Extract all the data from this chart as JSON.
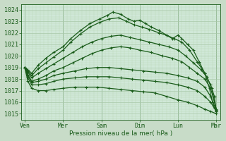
{
  "background_color": "#c8dcc8",
  "plot_bg_color": "#d0e8d8",
  "grid_major_color": "#a8c8a8",
  "grid_minor_color": "#b8d8b8",
  "line_color": "#1a5c1a",
  "marker": "+",
  "title": "Pression niveau de la mer( hPa )",
  "ylim": [
    1014.5,
    1024.5
  ],
  "yticks": [
    1015,
    1016,
    1017,
    1018,
    1019,
    1020,
    1021,
    1022,
    1023,
    1024
  ],
  "xtick_labels": [
    "Ven",
    "Mer",
    "Sam",
    "Dim",
    "Lun",
    "Mar"
  ],
  "xtick_positions": [
    0,
    1,
    2,
    3,
    4,
    5
  ],
  "series": [
    {
      "x": [
        0,
        0.08,
        0.18,
        0.35,
        0.55,
        0.75,
        1.0,
        1.2,
        1.45,
        1.7,
        1.95,
        2.15,
        2.3,
        2.5,
        2.7,
        2.85,
        3.0,
        3.15,
        3.3,
        3.5,
        3.7,
        3.85,
        4.0,
        4.1,
        4.25,
        4.4,
        4.55,
        4.7,
        4.82,
        4.9,
        4.95,
        5.0
      ],
      "y": [
        1019.0,
        1018.8,
        1018.5,
        1019.2,
        1019.8,
        1020.3,
        1020.8,
        1021.5,
        1022.2,
        1022.8,
        1023.2,
        1023.5,
        1023.8,
        1023.6,
        1023.2,
        1023.0,
        1023.1,
        1022.8,
        1022.5,
        1022.2,
        1021.8,
        1021.5,
        1021.8,
        1021.5,
        1021.0,
        1020.5,
        1019.5,
        1018.5,
        1017.2,
        1016.0,
        1015.5,
        1015.2
      ]
    },
    {
      "x": [
        0,
        0.08,
        0.18,
        0.35,
        0.55,
        0.75,
        1.0,
        1.2,
        1.45,
        1.7,
        1.95,
        2.2,
        2.45,
        2.65,
        2.85,
        3.05,
        3.25,
        3.5,
        3.7,
        3.9,
        4.1,
        4.3,
        4.5,
        4.7,
        4.85,
        4.95,
        5.0
      ],
      "y": [
        1019.0,
        1018.7,
        1018.3,
        1018.9,
        1019.4,
        1019.9,
        1020.5,
        1021.2,
        1021.9,
        1022.5,
        1022.9,
        1023.2,
        1023.3,
        1023.0,
        1022.7,
        1022.5,
        1022.3,
        1022.0,
        1021.8,
        1021.5,
        1021.2,
        1020.5,
        1019.5,
        1018.5,
        1017.5,
        1016.5,
        1015.2
      ]
    },
    {
      "x": [
        0,
        0.08,
        0.18,
        0.35,
        0.55,
        0.75,
        1.0,
        1.25,
        1.5,
        1.75,
        2.0,
        2.25,
        2.5,
        2.75,
        3.0,
        3.25,
        3.5,
        3.75,
        4.0,
        4.2,
        4.4,
        4.6,
        4.75,
        4.88,
        5.0
      ],
      "y": [
        1019.0,
        1018.6,
        1018.1,
        1018.5,
        1018.9,
        1019.3,
        1019.8,
        1020.3,
        1020.8,
        1021.2,
        1021.5,
        1021.7,
        1021.8,
        1021.6,
        1021.4,
        1021.2,
        1021.0,
        1020.8,
        1020.5,
        1020.0,
        1019.4,
        1018.8,
        1018.2,
        1017.2,
        1015.3
      ]
    },
    {
      "x": [
        0,
        0.08,
        0.18,
        0.35,
        0.55,
        0.75,
        1.0,
        1.25,
        1.5,
        1.75,
        2.0,
        2.25,
        2.5,
        2.75,
        3.0,
        3.3,
        3.6,
        3.85,
        4.1,
        4.3,
        4.5,
        4.7,
        4.85,
        5.0
      ],
      "y": [
        1019.0,
        1018.4,
        1017.8,
        1018.0,
        1018.3,
        1018.7,
        1019.0,
        1019.4,
        1019.8,
        1020.2,
        1020.5,
        1020.7,
        1020.8,
        1020.7,
        1020.5,
        1020.3,
        1020.0,
        1019.8,
        1019.5,
        1019.0,
        1018.5,
        1018.0,
        1017.2,
        1015.4
      ]
    },
    {
      "x": [
        0,
        0.08,
        0.18,
        0.35,
        0.55,
        0.75,
        1.0,
        1.3,
        1.6,
        1.9,
        2.2,
        2.5,
        2.8,
        3.1,
        3.4,
        3.7,
        4.0,
        4.25,
        4.5,
        4.7,
        4.85,
        5.0
      ],
      "y": [
        1019.0,
        1018.3,
        1017.7,
        1017.8,
        1018.0,
        1018.3,
        1018.5,
        1018.7,
        1018.9,
        1019.0,
        1019.0,
        1018.9,
        1018.8,
        1018.7,
        1018.6,
        1018.5,
        1018.3,
        1018.1,
        1017.8,
        1017.3,
        1016.5,
        1015.3
      ]
    },
    {
      "x": [
        0,
        0.08,
        0.18,
        0.35,
        0.55,
        0.75,
        1.0,
        1.3,
        1.6,
        1.9,
        2.2,
        2.5,
        2.8,
        3.1,
        3.4,
        3.7,
        4.0,
        4.25,
        4.5,
        4.7,
        4.85,
        5.0
      ],
      "y": [
        1019.0,
        1018.1,
        1017.5,
        1017.5,
        1017.6,
        1017.8,
        1018.0,
        1018.1,
        1018.2,
        1018.2,
        1018.2,
        1018.1,
        1018.0,
        1017.9,
        1017.8,
        1017.7,
        1017.5,
        1017.3,
        1017.0,
        1016.5,
        1016.0,
        1015.2
      ]
    },
    {
      "x": [
        0,
        0.08,
        0.18,
        0.35,
        0.55,
        0.75,
        1.0,
        1.3,
        1.6,
        1.9,
        2.2,
        2.5,
        2.8,
        3.1,
        3.4,
        3.7,
        4.0,
        4.25,
        4.5,
        4.7,
        4.85,
        5.0
      ],
      "y": [
        1019.0,
        1017.8,
        1017.2,
        1017.0,
        1017.0,
        1017.1,
        1017.2,
        1017.3,
        1017.3,
        1017.3,
        1017.2,
        1017.1,
        1017.0,
        1016.9,
        1016.8,
        1016.5,
        1016.2,
        1016.0,
        1015.7,
        1015.4,
        1015.2,
        1015.0
      ]
    }
  ]
}
